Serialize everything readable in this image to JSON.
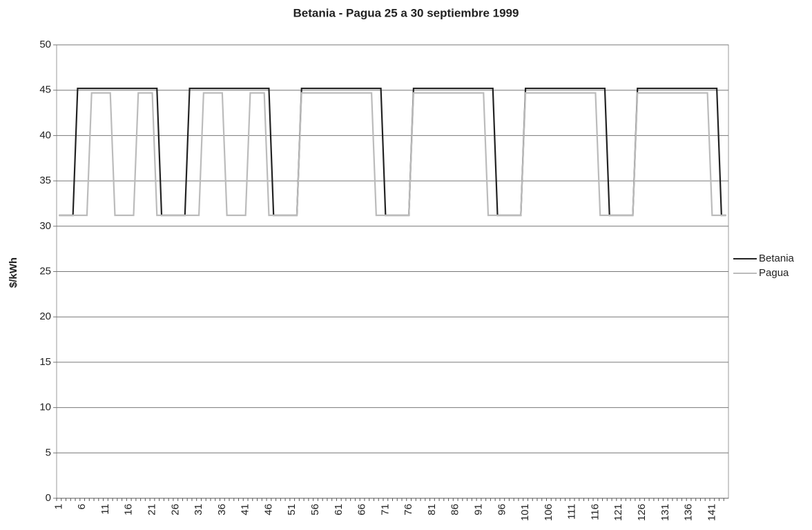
{
  "chart_data": {
    "type": "line",
    "title": "Betania  - Pagua 25 a 30 septiembre 1999",
    "y_label": "$/kWh",
    "categories": [
      1,
      null,
      null,
      null,
      null,
      6,
      null,
      null,
      null,
      null,
      11,
      null,
      null,
      null,
      null,
      16,
      null,
      null,
      null,
      null,
      21,
      null,
      null,
      null,
      null,
      26,
      null,
      null,
      null,
      null,
      31,
      null,
      null,
      null,
      null,
      36,
      null,
      null,
      null,
      null,
      41,
      null,
      null,
      null,
      null,
      46,
      null,
      null,
      null,
      null,
      51,
      null,
      null,
      null,
      null,
      56,
      null,
      null,
      null,
      null,
      61,
      null,
      null,
      null,
      null,
      66,
      null,
      null,
      null,
      null,
      71,
      null,
      null,
      null,
      null,
      76,
      null,
      null,
      null,
      null,
      81,
      null,
      null,
      null,
      null,
      86,
      null,
      null,
      null,
      null,
      91,
      null,
      null,
      null,
      null,
      96,
      null,
      null,
      null,
      null,
      101,
      null,
      null,
      null,
      null,
      106,
      null,
      null,
      null,
      null,
      111,
      null,
      null,
      null,
      null,
      116,
      null,
      null,
      null,
      null,
      121,
      null,
      null,
      null,
      null,
      126,
      null,
      null,
      null,
      null,
      131,
      null,
      null,
      null,
      null,
      136,
      null,
      null,
      null,
      null,
      141,
      null,
      null,
      null
    ],
    "series": [
      {
        "name": "Betania",
        "color": "#222222",
        "values": [
          31.2,
          31.2,
          31.2,
          31.2,
          45.2,
          45.2,
          45.2,
          45.2,
          45.2,
          45.2,
          45.2,
          45.2,
          45.2,
          45.2,
          45.2,
          45.2,
          45.2,
          45.2,
          45.2,
          45.2,
          45.2,
          45.2,
          31.2,
          31.2,
          31.2,
          31.2,
          31.2,
          31.2,
          45.2,
          45.2,
          45.2,
          45.2,
          45.2,
          45.2,
          45.2,
          45.2,
          45.2,
          45.2,
          45.2,
          45.2,
          45.2,
          45.2,
          45.2,
          45.2,
          45.2,
          45.2,
          31.2,
          31.2,
          31.2,
          31.2,
          31.2,
          31.2,
          45.2,
          45.2,
          45.2,
          45.2,
          45.2,
          45.2,
          45.2,
          45.2,
          45.2,
          45.2,
          45.2,
          45.2,
          45.2,
          45.2,
          45.2,
          45.2,
          45.2,
          45.2,
          31.2,
          31.2,
          31.2,
          31.2,
          31.2,
          31.2,
          45.2,
          45.2,
          45.2,
          45.2,
          45.2,
          45.2,
          45.2,
          45.2,
          45.2,
          45.2,
          45.2,
          45.2,
          45.2,
          45.2,
          45.2,
          45.2,
          45.2,
          45.2,
          31.2,
          31.2,
          31.2,
          31.2,
          31.2,
          31.2,
          45.2,
          45.2,
          45.2,
          45.2,
          45.2,
          45.2,
          45.2,
          45.2,
          45.2,
          45.2,
          45.2,
          45.2,
          45.2,
          45.2,
          45.2,
          45.2,
          45.2,
          45.2,
          31.2,
          31.2,
          31.2,
          31.2,
          31.2,
          31.2,
          45.2,
          45.2,
          45.2,
          45.2,
          45.2,
          45.2,
          45.2,
          45.2,
          45.2,
          45.2,
          45.2,
          45.2,
          45.2,
          45.2,
          45.2,
          45.2,
          45.2,
          45.2,
          31.2,
          31.2
        ]
      },
      {
        "name": "Pagua",
        "color": "#bbbbbb",
        "values": [
          31.2,
          31.2,
          31.2,
          31.2,
          31.2,
          31.2,
          31.2,
          44.7,
          44.7,
          44.7,
          44.7,
          44.7,
          31.2,
          31.2,
          31.2,
          31.2,
          31.2,
          44.7,
          44.7,
          44.7,
          44.7,
          31.2,
          31.2,
          31.2,
          31.2,
          31.2,
          31.2,
          31.2,
          31.2,
          31.2,
          31.2,
          44.7,
          44.7,
          44.7,
          44.7,
          44.7,
          31.2,
          31.2,
          31.2,
          31.2,
          31.2,
          44.7,
          44.7,
          44.7,
          44.7,
          31.2,
          31.2,
          31.2,
          31.2,
          31.2,
          31.2,
          31.2,
          44.7,
          44.7,
          44.7,
          44.7,
          44.7,
          44.7,
          44.7,
          44.7,
          44.7,
          44.7,
          44.7,
          44.7,
          44.7,
          44.7,
          44.7,
          44.7,
          31.2,
          31.2,
          31.2,
          31.2,
          31.2,
          31.2,
          31.2,
          31.2,
          44.7,
          44.7,
          44.7,
          44.7,
          44.7,
          44.7,
          44.7,
          44.7,
          44.7,
          44.7,
          44.7,
          44.7,
          44.7,
          44.7,
          44.7,
          44.7,
          31.2,
          31.2,
          31.2,
          31.2,
          31.2,
          31.2,
          31.2,
          31.2,
          44.7,
          44.7,
          44.7,
          44.7,
          44.7,
          44.7,
          44.7,
          44.7,
          44.7,
          44.7,
          44.7,
          44.7,
          44.7,
          44.7,
          44.7,
          44.7,
          31.2,
          31.2,
          31.2,
          31.2,
          31.2,
          31.2,
          31.2,
          31.2,
          44.7,
          44.7,
          44.7,
          44.7,
          44.7,
          44.7,
          44.7,
          44.7,
          44.7,
          44.7,
          44.7,
          44.7,
          44.7,
          44.7,
          44.7,
          44.7,
          31.2,
          31.2,
          31.2,
          31.2
        ]
      }
    ],
    "ylim": [
      0,
      50
    ],
    "yticks": [
      0,
      5,
      10,
      15,
      20,
      25,
      30,
      35,
      40,
      45,
      50
    ],
    "grid": true,
    "legend": "right"
  }
}
